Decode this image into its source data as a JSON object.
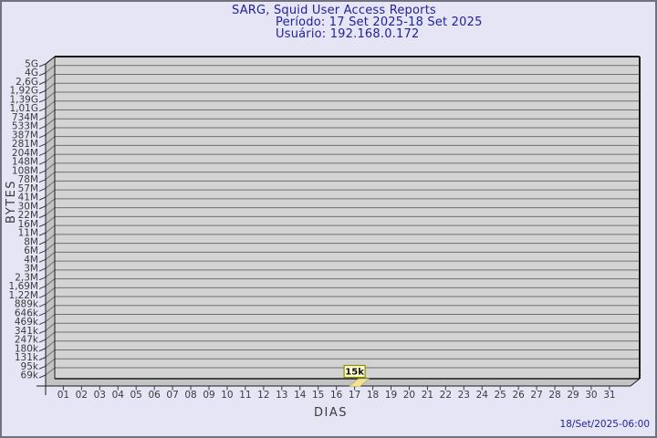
{
  "window": {
    "background": "#e5e5f5",
    "frame_border_color": "#71717f"
  },
  "header": {
    "title": "SARG, Squid User Access Reports",
    "period_line": "Período: 17 Set 2025-18 Set 2025",
    "user_line": "Usuário: 192.168.0.172",
    "text_color": "#222299"
  },
  "footer": {
    "timestamp": "18/Set/2025-06:00"
  },
  "chart_data": {
    "type": "bar",
    "title": "SARG, Squid User Access Reports",
    "subtitle": "Período: 17 Set 2025-18 Set 2025 / Usuário: 192.168.0.172",
    "xlabel": "DIAS",
    "ylabel": "BYTES",
    "style": "3d-bar",
    "grid": "horizontal",
    "axis_scale": "log-like",
    "x_tick_labels": [
      "01",
      "02",
      "03",
      "04",
      "05",
      "06",
      "07",
      "08",
      "09",
      "10",
      "11",
      "12",
      "13",
      "14",
      "15",
      "16",
      "17",
      "18",
      "19",
      "20",
      "21",
      "22",
      "23",
      "24",
      "25",
      "26",
      "27",
      "28",
      "29",
      "30",
      "31"
    ],
    "y_tick_labels": [
      "5G",
      "4G",
      "2,6G",
      "1,92G",
      "1,39G",
      "1,01G",
      "734M",
      "533M",
      "387M",
      "281M",
      "204M",
      "148M",
      "108M",
      "78M",
      "57M",
      "41M",
      "30M",
      "22M",
      "16M",
      "11M",
      "8M",
      "6M",
      "4M",
      "3M",
      "2,3M",
      "1,69M",
      "1,22M",
      "889k",
      "646k",
      "469k",
      "341k",
      "247k",
      "180k",
      "131k",
      "95k",
      "69k"
    ],
    "values_bytes": [
      0,
      0,
      0,
      0,
      0,
      0,
      0,
      0,
      0,
      0,
      0,
      0,
      0,
      0,
      0,
      0,
      15000,
      0,
      0,
      0,
      0,
      0,
      0,
      0,
      0,
      0,
      0,
      0,
      0,
      0,
      0
    ],
    "annotations": [
      {
        "day_index": 16,
        "day_label": "17",
        "value_label": "15k"
      }
    ],
    "colors": {
      "plot_bg": "#d3d3d3",
      "wall_fill": "#c3c3c3",
      "grid_line": "#6f6f6f",
      "edge_line": "#1a1a1a",
      "tick_text": "#3b3b3b",
      "bar_fill": "#f1e394",
      "bar_edge": "#b8a23c",
      "callout_bg": "#ffffd2",
      "callout_border": "#8f8f00",
      "callout_text": "#111111"
    }
  }
}
